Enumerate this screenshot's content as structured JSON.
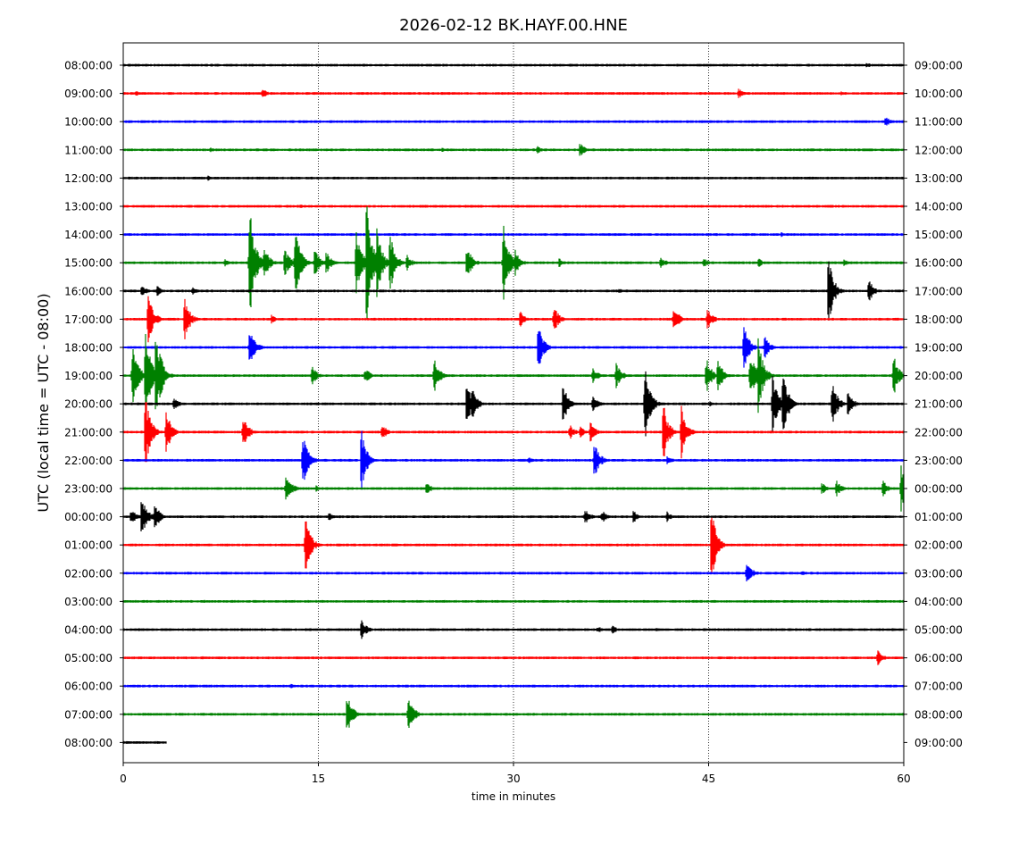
{
  "chart_data": {
    "type": "line",
    "title": "2026-02-12 BK.HAYF.00.HNE",
    "xlabel": "time in minutes",
    "ylabel": "UTC (local time = UTC - 08:00)",
    "xlim": [
      0,
      60
    ],
    "x_ticks": [
      0,
      15,
      30,
      45,
      60
    ],
    "grid": "vertical dotted at 15, 30, 45",
    "left_labels": [
      "08:00:00",
      "09:00:00",
      "10:00:00",
      "11:00:00",
      "12:00:00",
      "13:00:00",
      "14:00:00",
      "15:00:00",
      "16:00:00",
      "17:00:00",
      "18:00:00",
      "19:00:00",
      "20:00:00",
      "21:00:00",
      "22:00:00",
      "23:00:00",
      "00:00:00",
      "01:00:00",
      "02:00:00",
      "03:00:00",
      "04:00:00",
      "05:00:00",
      "06:00:00",
      "07:00:00",
      "08:00:00"
    ],
    "right_labels": [
      "09:00:00",
      "10:00:00",
      "11:00:00",
      "12:00:00",
      "13:00:00",
      "14:00:00",
      "15:00:00",
      "16:00:00",
      "17:00:00",
      "18:00:00",
      "19:00:00",
      "20:00:00",
      "21:00:00",
      "22:00:00",
      "23:00:00",
      "00:00:00",
      "01:00:00",
      "02:00:00",
      "03:00:00",
      "04:00:00",
      "05:00:00",
      "06:00:00",
      "07:00:00",
      "08:00:00",
      "09:00:00"
    ],
    "trace_colors": [
      "#000000",
      "#ff0000",
      "#0000ff",
      "#008000"
    ],
    "series": [
      {
        "end": 60,
        "events": [
          [
            57.1,
            4
          ]
        ]
      },
      {
        "end": 60,
        "events": [
          [
            1,
            4
          ],
          [
            10.7,
            6
          ],
          [
            27.5,
            2
          ],
          [
            47.3,
            6
          ],
          [
            55.2,
            3
          ]
        ]
      },
      {
        "end": 60,
        "events": [
          [
            58.6,
            7
          ]
        ]
      },
      {
        "end": 60,
        "events": [
          [
            6.7,
            3
          ],
          [
            24.5,
            3
          ],
          [
            31.8,
            5
          ],
          [
            35.1,
            9
          ]
        ]
      },
      {
        "end": 60,
        "events": [
          [
            6.5,
            3
          ],
          [
            44.5,
            2
          ]
        ]
      },
      {
        "end": 60,
        "events": [
          [
            13.6,
            3
          ]
        ]
      },
      {
        "end": 60,
        "events": [
          [
            50.6,
            3
          ]
        ]
      },
      {
        "end": 60,
        "events": [
          [
            7.8,
            5
          ],
          [
            9.7,
            72
          ],
          [
            10.8,
            22
          ],
          [
            12.4,
            18
          ],
          [
            13.2,
            46
          ],
          [
            14.7,
            18
          ],
          [
            15.6,
            14
          ],
          [
            17.9,
            42
          ],
          [
            18.7,
            84
          ],
          [
            19.5,
            40
          ],
          [
            20.5,
            36
          ],
          [
            21.8,
            10
          ],
          [
            26.4,
            22
          ],
          [
            29.2,
            48
          ],
          [
            30.1,
            16
          ],
          [
            33.5,
            6
          ],
          [
            41.3,
            8
          ],
          [
            44.6,
            6
          ],
          [
            48.8,
            6
          ],
          [
            55.4,
            4
          ]
        ]
      },
      {
        "end": 60,
        "events": [
          [
            1.4,
            8
          ],
          [
            2.6,
            7
          ],
          [
            5.3,
            5
          ],
          [
            38.1,
            3
          ],
          [
            54.2,
            42
          ],
          [
            57.3,
            14
          ]
        ]
      },
      {
        "end": 60,
        "events": [
          [
            1.9,
            32
          ],
          [
            4.7,
            28
          ],
          [
            11.4,
            6
          ],
          [
            30.5,
            10
          ],
          [
            33.1,
            16
          ],
          [
            42.3,
            18
          ],
          [
            44.9,
            14
          ]
        ]
      },
      {
        "end": 60,
        "events": [
          [
            9.7,
            28
          ],
          [
            31.9,
            28
          ],
          [
            47.7,
            28
          ],
          [
            49.3,
            14
          ]
        ]
      },
      {
        "end": 60,
        "events": [
          [
            0.7,
            42
          ],
          [
            1.7,
            56
          ],
          [
            2.5,
            64
          ],
          [
            14.5,
            12
          ],
          [
            18.6,
            10
          ],
          [
            23.9,
            22
          ],
          [
            36.1,
            10
          ],
          [
            37.9,
            16
          ],
          [
            44.8,
            24
          ],
          [
            45.7,
            22
          ],
          [
            48.2,
            28
          ],
          [
            48.8,
            46
          ],
          [
            59.2,
            28
          ]
        ]
      },
      {
        "end": 60,
        "events": [
          [
            3.9,
            8
          ],
          [
            26.4,
            28
          ],
          [
            26.8,
            22
          ],
          [
            33.8,
            24
          ],
          [
            36.1,
            12
          ],
          [
            40.1,
            46
          ],
          [
            45.1,
            4
          ],
          [
            49.9,
            42
          ],
          [
            50.7,
            42
          ],
          [
            54.5,
            30
          ],
          [
            55.7,
            16
          ]
        ]
      },
      {
        "end": 60,
        "events": [
          [
            1.7,
            44
          ],
          [
            3.3,
            26
          ],
          [
            9.2,
            22
          ],
          [
            19.9,
            10
          ],
          [
            34.3,
            10
          ],
          [
            35.1,
            8
          ],
          [
            35.9,
            14
          ],
          [
            41.5,
            36
          ],
          [
            42.9,
            30
          ]
        ]
      },
      {
        "end": 60,
        "events": [
          [
            13.8,
            36
          ],
          [
            18.3,
            40
          ],
          [
            31.2,
            4
          ],
          [
            36.2,
            24
          ],
          [
            41.8,
            6
          ]
        ]
      },
      {
        "end": 60,
        "events": [
          [
            12.5,
            22
          ],
          [
            14.8,
            4
          ],
          [
            23.3,
            8
          ],
          [
            53.7,
            7
          ],
          [
            54.8,
            10
          ],
          [
            58.4,
            10
          ],
          [
            59.8,
            30
          ]
        ]
      },
      {
        "end": 60,
        "events": [
          [
            0.6,
            10
          ],
          [
            1.4,
            26
          ],
          [
            2.4,
            18
          ],
          [
            15.8,
            6
          ],
          [
            35.5,
            10
          ],
          [
            36.8,
            8
          ],
          [
            39.2,
            8
          ],
          [
            41.8,
            6
          ]
        ]
      },
      {
        "end": 60,
        "events": [
          [
            14,
            36
          ],
          [
            45.2,
            44
          ]
        ]
      },
      {
        "end": 60,
        "events": [
          [
            47.9,
            16
          ],
          [
            52.2,
            4
          ]
        ]
      },
      {
        "end": 60,
        "events": [
          [
            6.2,
            2
          ],
          [
            40,
            2
          ]
        ]
      },
      {
        "end": 60,
        "events": [
          [
            14.3,
            3
          ],
          [
            18.3,
            14
          ],
          [
            36.5,
            4
          ],
          [
            37.6,
            5
          ],
          [
            41,
            3
          ]
        ]
      },
      {
        "end": 60,
        "events": [
          [
            6.1,
            2
          ],
          [
            58,
            10
          ]
        ]
      },
      {
        "end": 60,
        "events": [
          [
            6.8,
            2
          ],
          [
            12.9,
            3
          ],
          [
            53.1,
            2
          ]
        ]
      },
      {
        "end": 60,
        "events": [
          [
            17.2,
            26
          ],
          [
            21.9,
            24
          ]
        ]
      },
      {
        "end": 3.3,
        "events": []
      }
    ]
  }
}
